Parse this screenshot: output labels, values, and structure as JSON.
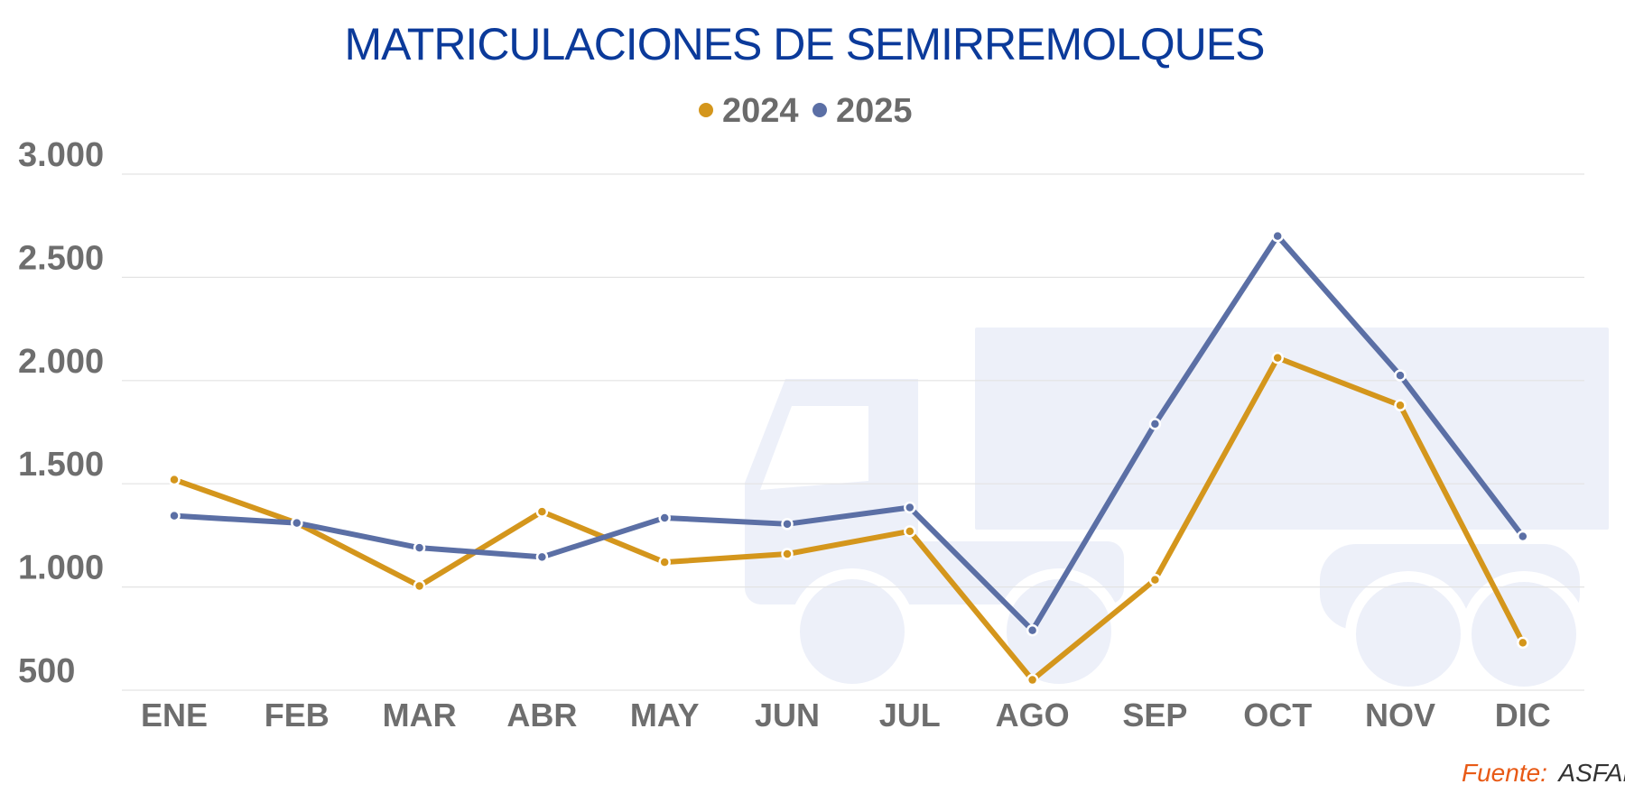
{
  "chart_data": {
    "type": "line",
    "title": "MATRICULACIONES DE SEMIRREMOLQUES",
    "categories": [
      "ENE",
      "FEB",
      "MAR",
      "ABR",
      "MAY",
      "JUN",
      "JUL",
      "AGO",
      "SEP",
      "OCT",
      "NOV",
      "DIC"
    ],
    "series": [
      {
        "name": "2024",
        "color": "#d4961c",
        "values": [
          1520,
          1310,
          1005,
          1365,
          1120,
          1160,
          1270,
          550,
          1035,
          2110,
          1880,
          730
        ]
      },
      {
        "name": "2025",
        "color": "#5b6fa5",
        "values": [
          1345,
          1310,
          1190,
          1145,
          1335,
          1305,
          1385,
          790,
          1790,
          2700,
          2025,
          1245
        ]
      }
    ],
    "ylim": [
      500,
      3000
    ],
    "yticks": [
      500,
      1000,
      1500,
      2000,
      2500,
      3000
    ],
    "ytick_labels": [
      "500",
      "1.000",
      "1.500",
      "2.000",
      "2.500",
      "3.000"
    ],
    "grid": true,
    "legend_position": "top-center",
    "background_icon": "truck-icon",
    "source_label": "Fuente:",
    "source_value": "ASFARES"
  }
}
